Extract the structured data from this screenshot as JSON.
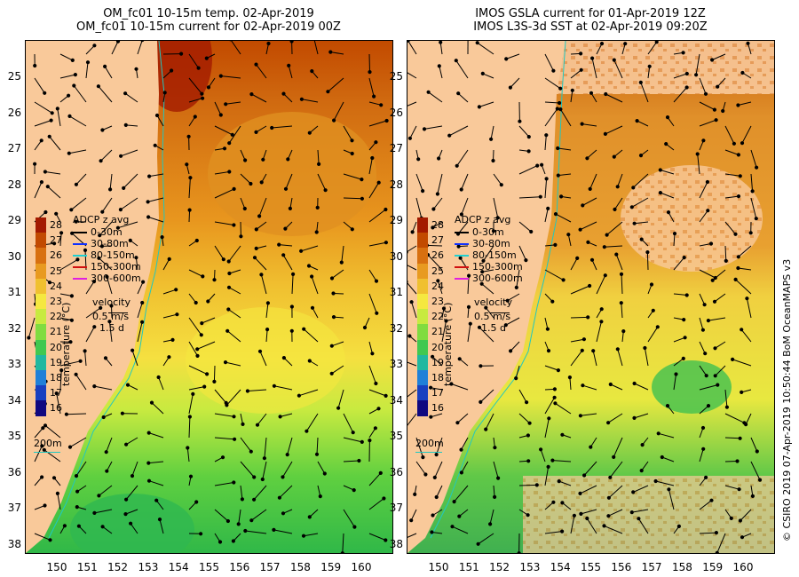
{
  "left_panel": {
    "title_line1": "OM_fc01 10-15m temp. 02-Apr-2019",
    "title_line2": "OM_fc01 10-15m current for 02-Apr-2019 00Z"
  },
  "right_panel": {
    "title_line1": "IMOS GSLA current for 01-Apr-2019 12Z",
    "title_line2": "IMOS L3S-3d SST at 02-Apr-2019 09:20Z"
  },
  "y_ticks": [
    "25",
    "26",
    "27",
    "28",
    "29",
    "30",
    "31",
    "32",
    "33",
    "34",
    "35",
    "36",
    "37",
    "38"
  ],
  "x_ticks": [
    "150",
    "151",
    "152",
    "153",
    "154",
    "155",
    "156",
    "157",
    "158",
    "159",
    "160"
  ],
  "colorbar": {
    "ticks": [
      "28",
      "27",
      "26",
      "25",
      "24",
      "23",
      "22",
      "21",
      "20",
      "19",
      "18",
      "17",
      "16"
    ],
    "label": "temperature (°C)",
    "colors": [
      "#a31a00",
      "#c24a00",
      "#d87010",
      "#e89a20",
      "#f0c030",
      "#f5e840",
      "#c8ea40",
      "#80dc40",
      "#40c850",
      "#20b8a0",
      "#2080d8",
      "#1840c0",
      "#100880"
    ]
  },
  "legend": {
    "title": "ADCP z avg",
    "items": [
      {
        "label": "0-30m",
        "color": "#000000"
      },
      {
        "label": "30-80m",
        "color": "#1030ff"
      },
      {
        "label": "80-150m",
        "color": "#20d0d0"
      },
      {
        "label": "150-300m",
        "color": "#d01010"
      },
      {
        "label": "300-600m",
        "color": "#e020e0"
      }
    ],
    "velocity_label": "velocity",
    "velocity_scale": "0.5 m/s",
    "velocity_time": "1.5 d"
  },
  "isobath_label": "200m",
  "credit": "© CSIRO 2019   07-Apr-2019 10:50:44 BoM OceanMAPS v3",
  "colors": {
    "land": "#f9c99a",
    "coast_line": "#20c8c0"
  }
}
